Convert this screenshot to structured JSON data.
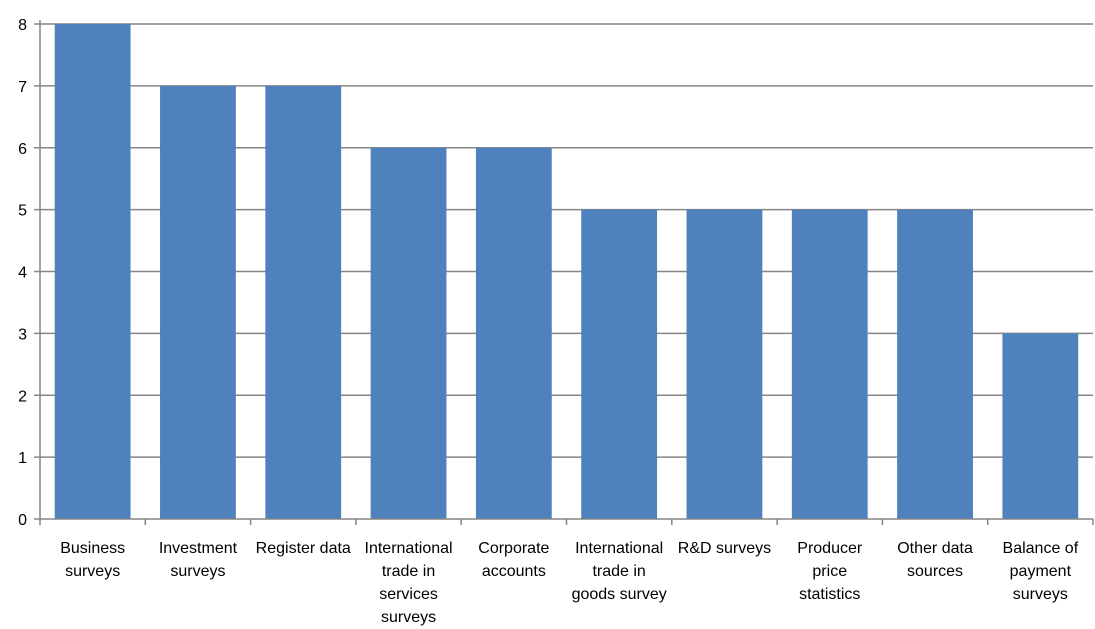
{
  "chart_data": {
    "type": "bar",
    "title": "",
    "xlabel": "",
    "ylabel": "",
    "categories": [
      [
        "Business",
        "surveys"
      ],
      [
        "Investment",
        "surveys"
      ],
      [
        "Register data"
      ],
      [
        "International",
        "trade in",
        "services",
        "surveys"
      ],
      [
        "Corporate",
        "accounts"
      ],
      [
        "International",
        "trade in",
        "goods survey"
      ],
      [
        "R&D surveys"
      ],
      [
        "Producer",
        "price",
        "statistics"
      ],
      [
        "Other data",
        "sources"
      ],
      [
        "Balance of",
        "payment",
        "surveys"
      ]
    ],
    "values": [
      8,
      7,
      7,
      6,
      6,
      5,
      5,
      5,
      5,
      3
    ],
    "ylim": [
      0,
      8
    ],
    "yticks": [
      0,
      1,
      2,
      3,
      4,
      5,
      6,
      7,
      8
    ],
    "grid": true,
    "legend": "none",
    "colors": {
      "bar": "#4F81BD",
      "grid": "#868686",
      "axis": "#868686"
    }
  }
}
